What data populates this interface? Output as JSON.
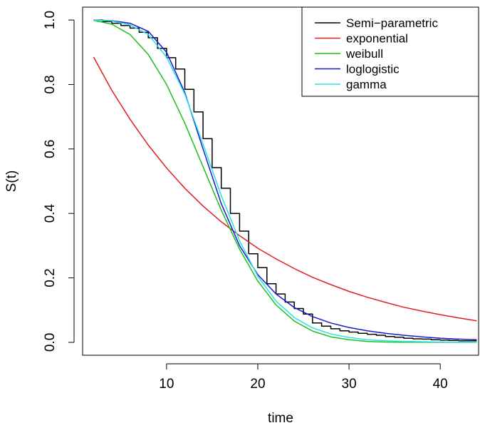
{
  "chart_data": {
    "type": "line",
    "title": "",
    "xlabel": "time",
    "ylabel": "S(t)",
    "xlim": [
      0.8,
      44.2
    ],
    "ylim": [
      -0.04,
      1.04
    ],
    "x_ticks": [
      10,
      20,
      30,
      40
    ],
    "y_ticks": [
      0.0,
      0.2,
      0.4,
      0.6,
      0.8,
      1.0
    ],
    "x_tick_labels": [
      "10",
      "20",
      "30",
      "40"
    ],
    "y_tick_labels": [
      "0.0",
      "0.2",
      "0.4",
      "0.6",
      "0.8",
      "1.0"
    ],
    "grid": false,
    "legend_position": "top-right",
    "series": [
      {
        "name": "Semi−parametric",
        "color": "#000000",
        "step": true,
        "x": [
          2,
          3,
          4,
          5,
          6,
          7,
          8,
          9,
          10,
          11,
          12,
          13,
          14,
          15,
          16,
          17,
          18,
          19,
          20,
          21,
          22,
          23,
          24,
          25,
          26,
          27,
          28,
          29,
          30,
          31,
          32,
          33,
          34,
          35,
          36,
          37,
          38,
          39,
          40,
          41,
          42,
          43,
          44
        ],
        "y": [
          1.0,
          0.995,
          0.99,
          0.983,
          0.975,
          0.962,
          0.945,
          0.912,
          0.883,
          0.848,
          0.785,
          0.715,
          0.632,
          0.542,
          0.478,
          0.4,
          0.345,
          0.275,
          0.232,
          0.182,
          0.15,
          0.125,
          0.105,
          0.088,
          0.06,
          0.05,
          0.042,
          0.036,
          0.032,
          0.028,
          0.025,
          0.022,
          0.018,
          0.016,
          0.013,
          0.011,
          0.01,
          0.008,
          0.007,
          0.006,
          0.005,
          0.005,
          0.005
        ]
      },
      {
        "name": "exponential",
        "color": "#df2020",
        "x": [
          2,
          4,
          6,
          8,
          10,
          12,
          14,
          16,
          18,
          20,
          22,
          24,
          26,
          28,
          30,
          32,
          34,
          36,
          38,
          40,
          42,
          44
        ],
        "y": [
          0.885,
          0.782,
          0.692,
          0.612,
          0.541,
          0.478,
          0.423,
          0.374,
          0.331,
          0.292,
          0.259,
          0.229,
          0.202,
          0.179,
          0.158,
          0.14,
          0.124,
          0.109,
          0.097,
          0.086,
          0.076,
          0.067
        ]
      },
      {
        "name": "weibull",
        "color": "#1fbe1f",
        "x": [
          2,
          4,
          6,
          8,
          10,
          12,
          14,
          16,
          18,
          20,
          22,
          24,
          26,
          28,
          30,
          32,
          34,
          36,
          38,
          40,
          42,
          44
        ],
        "y": [
          0.999,
          0.987,
          0.955,
          0.893,
          0.8,
          0.68,
          0.545,
          0.41,
          0.289,
          0.19,
          0.116,
          0.066,
          0.035,
          0.017,
          0.008,
          0.003,
          0.001,
          0.0005,
          0.0002,
          0.0001,
          0.0,
          0.0
        ]
      },
      {
        "name": "loglogistic",
        "color": "#1a1acd",
        "x": [
          2,
          4,
          6,
          8,
          10,
          12,
          14,
          16,
          18,
          20,
          22,
          24,
          26,
          28,
          30,
          32,
          34,
          36,
          38,
          40,
          42,
          44
        ],
        "y": [
          1.0,
          0.998,
          0.99,
          0.965,
          0.9,
          0.775,
          0.6,
          0.43,
          0.3,
          0.21,
          0.15,
          0.108,
          0.08,
          0.06,
          0.046,
          0.036,
          0.028,
          0.022,
          0.017,
          0.013,
          0.01,
          0.008
        ]
      },
      {
        "name": "gamma",
        "color": "#28e2e5",
        "x": [
          2,
          4,
          6,
          8,
          10,
          12,
          14,
          16,
          18,
          20,
          22,
          24,
          26,
          28,
          30,
          32,
          34,
          36,
          38,
          40,
          42,
          44
        ],
        "y": [
          1.0,
          0.997,
          0.985,
          0.955,
          0.885,
          0.77,
          0.615,
          0.455,
          0.315,
          0.205,
          0.128,
          0.077,
          0.045,
          0.026,
          0.015,
          0.008,
          0.005,
          0.003,
          0.002,
          0.001,
          0.0,
          0.0
        ]
      }
    ]
  }
}
